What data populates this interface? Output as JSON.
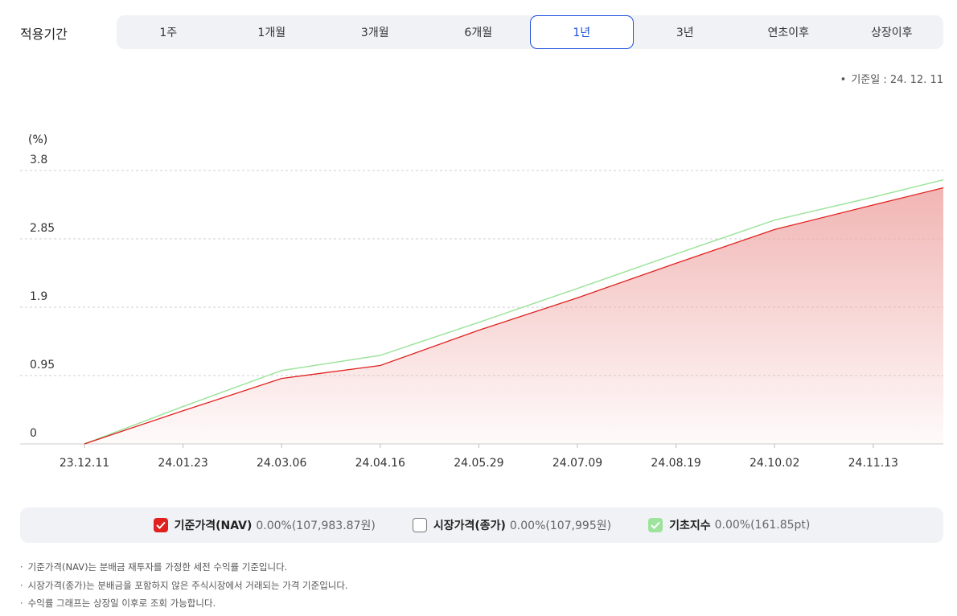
{
  "period": {
    "label": "적용기간",
    "tabs": [
      "1주",
      "1개월",
      "3개월",
      "6개월",
      "1년",
      "3년",
      "연초이후",
      "상장이후"
    ],
    "active_index": 4
  },
  "base_date": "기준일 : 24. 12. 11",
  "colors": {
    "nav": "#e0211f",
    "base_index": "#9ee39d",
    "active_tab": "#1f4fdc",
    "area_fill": "#eea8a6"
  },
  "legend": [
    {
      "name": "기준가격(NAV)",
      "value": "0.00%(107,983.87원)",
      "checked": true,
      "color": "red",
      "icon": "check-icon"
    },
    {
      "name": "시장가격(종가)",
      "value": "0.00%(107,995원)",
      "checked": false,
      "color": "empty",
      "icon": "empty-checkbox-icon"
    },
    {
      "name": "기초지수",
      "value": "0.00%(161.85pt)",
      "checked": true,
      "color": "green",
      "icon": "check-icon"
    }
  ],
  "notes": [
    "기준가격(NAV)는 분배금 재투자를 가정한 세전 수익률 기준입니다.",
    "시장가격(종가)는 분배금을 포함하지 않은 주식시장에서 거래되는 가격 기준입니다.",
    "수익률 그래프는 상장일 이후로 조회 가능합니다."
  ],
  "chart_data": {
    "type": "area",
    "ylabel": "(%)",
    "ylim": [
      0,
      3.8
    ],
    "yticks": [
      "0",
      "0.95",
      "1.9",
      "2.85",
      "3.8"
    ],
    "ytick_values": [
      0,
      0.95,
      1.9,
      2.85,
      3.8
    ],
    "grid": true,
    "xtick_labels": [
      "23.12.11",
      "24.01.23",
      "24.03.06",
      "24.04.16",
      "24.05.29",
      "24.07.09",
      "24.08.19",
      "24.10.02",
      "24.11.13"
    ],
    "x": [
      "23.12.11",
      "24.01.23",
      "24.03.06",
      "24.04.16",
      "24.05.29",
      "24.07.09",
      "24.08.19",
      "24.10.02",
      "24.11.13",
      "24.12.11"
    ],
    "series": [
      {
        "name": "기준가격(NAV)",
        "values": [
          0,
          0.46,
          0.91,
          1.09,
          1.58,
          2.03,
          2.51,
          2.98,
          3.32,
          3.56
        ]
      },
      {
        "name": "기초지수",
        "values": [
          0,
          0.52,
          1.02,
          1.23,
          1.69,
          2.16,
          2.64,
          3.11,
          3.43,
          3.67
        ]
      }
    ]
  }
}
